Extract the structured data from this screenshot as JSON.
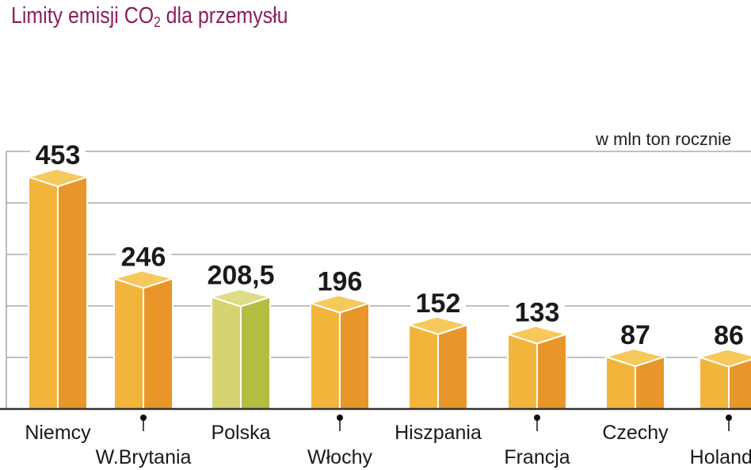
{
  "title_pre": "Limity emisji CO",
  "title_sub": "2",
  "title_post": " dla przemysłu",
  "colors": {
    "title": "#8b1f5c",
    "bar_left": "#f2b53c",
    "bar_right": "#e8952a",
    "bar_top": "#f7c85c",
    "highlight_left": "#d6d472",
    "highlight_right": "#b3bd40",
    "highlight_top": "#dedd86"
  },
  "chart_data": {
    "type": "bar",
    "title": "Limity emisji CO2 dla przemysłu",
    "unit_label": "w mln ton rocznie",
    "categories": [
      "Niemcy",
      "W.Brytania",
      "Polska",
      "Włochy",
      "Hiszpania",
      "Francja",
      "Czechy",
      "Holandia"
    ],
    "values": [
      453,
      246,
      208.5,
      196,
      152,
      133,
      87,
      86
    ],
    "value_labels": [
      "453",
      "246",
      "208,5",
      "196",
      "152",
      "133",
      "87",
      "86"
    ],
    "highlighted": "Polska",
    "grid": true
  }
}
